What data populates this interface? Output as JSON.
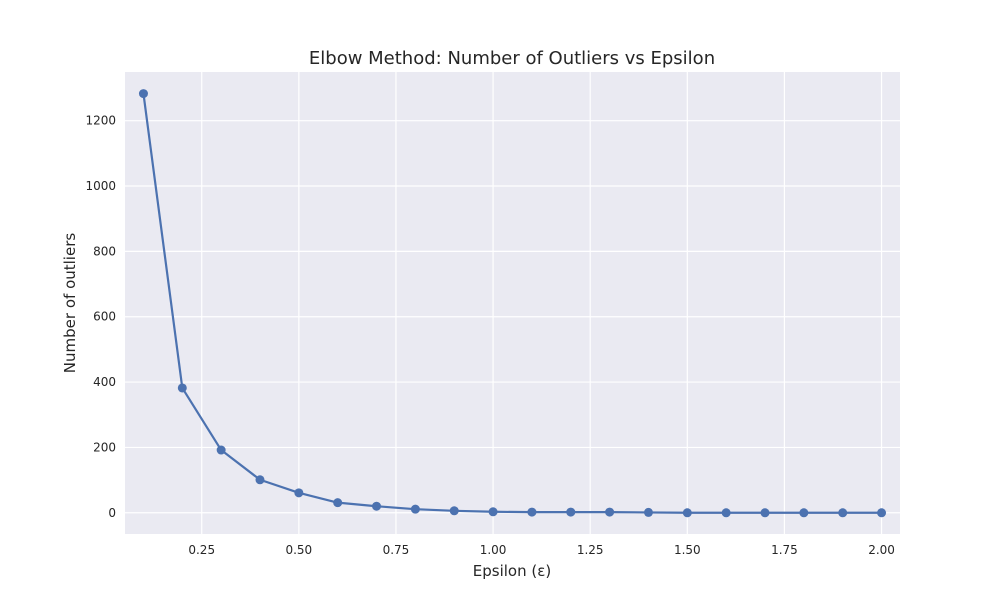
{
  "chart_data": {
    "type": "line",
    "title": "Elbow Method: Number of Outliers vs Epsilon",
    "xlabel": "Epsilon (ε)",
    "ylabel": "Number of outliers",
    "xlim": [
      0.0525,
      2.0475
    ],
    "ylim": [
      -65,
      1349
    ],
    "x_ticks": [
      0.25,
      0.5,
      0.75,
      1.0,
      1.25,
      1.5,
      1.75,
      2.0
    ],
    "x_tick_labels": [
      "0.25",
      "0.50",
      "0.75",
      "1.00",
      "1.25",
      "1.50",
      "1.75",
      "2.00"
    ],
    "y_ticks": [
      0,
      200,
      400,
      600,
      800,
      1000,
      1200
    ],
    "y_tick_labels": [
      "0",
      "200",
      "400",
      "600",
      "800",
      "1000",
      "1200"
    ],
    "grid": true,
    "series": [
      {
        "x": [
          0.1,
          0.2,
          0.3,
          0.4,
          0.5,
          0.6,
          0.7,
          0.8,
          0.9,
          1.0,
          1.1,
          1.2,
          1.3,
          1.4,
          1.5,
          1.6,
          1.7,
          1.8,
          1.9,
          2.0
        ],
        "values": [
          1283,
          382,
          192,
          101,
          61,
          31,
          20,
          11,
          6,
          3,
          2,
          2,
          2,
          1,
          0,
          0,
          0,
          0,
          0,
          0
        ],
        "color": "#4c72b0",
        "marker": "circle"
      }
    ],
    "background_color": "#eaeaf2",
    "grid_color": "#ffffff"
  }
}
